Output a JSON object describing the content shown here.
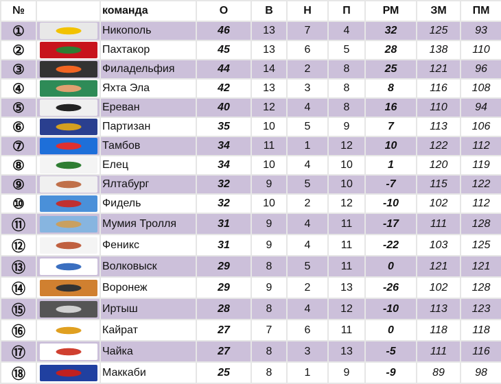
{
  "headers": {
    "pos": "№",
    "logo": "",
    "team": "команда",
    "pts": "О",
    "w": "В",
    "d": "Н",
    "l": "П",
    "gd": "РМ",
    "gf": "ЗМ",
    "ga": "ПМ"
  },
  "colors": {
    "alt_row": "#ccc0da",
    "grid": "#e6e6e6"
  },
  "rows": [
    {
      "pos": "①",
      "team": "Никополь",
      "pts": "46",
      "w": "13",
      "d": "7",
      "l": "4",
      "gd": "32",
      "gf": "125",
      "ga": "93",
      "logo_colors": [
        "#e8e8e8",
        "#f2c200"
      ]
    },
    {
      "pos": "②",
      "team": "Пахтакор",
      "pts": "45",
      "w": "13",
      "d": "6",
      "l": "5",
      "gd": "28",
      "gf": "138",
      "ga": "110",
      "logo_colors": [
        "#c8141c",
        "#2e7d32"
      ]
    },
    {
      "pos": "③",
      "team": "Филадельфия",
      "pts": "44",
      "w": "14",
      "d": "2",
      "l": "8",
      "gd": "25",
      "gf": "121",
      "ga": "96",
      "logo_colors": [
        "#333333",
        "#f26522"
      ]
    },
    {
      "pos": "④",
      "team": "Яхта Эла",
      "pts": "42",
      "w": "13",
      "d": "3",
      "l": "8",
      "gd": "8",
      "gf": "116",
      "ga": "108",
      "logo_colors": [
        "#2e8b57",
        "#e0a070"
      ]
    },
    {
      "pos": "⑤",
      "team": "Ереван",
      "pts": "40",
      "w": "12",
      "d": "4",
      "l": "8",
      "gd": "16",
      "gf": "110",
      "ga": "94",
      "logo_colors": [
        "#f0f0f0",
        "#222222"
      ]
    },
    {
      "pos": "⑥",
      "team": "Партизан",
      "pts": "35",
      "w": "10",
      "d": "5",
      "l": "9",
      "gd": "7",
      "gf": "113",
      "ga": "106",
      "logo_colors": [
        "#2a3f8f",
        "#d4a020"
      ]
    },
    {
      "pos": "⑦",
      "team": "Тамбов",
      "pts": "34",
      "w": "11",
      "d": "1",
      "l": "12",
      "gd": "10",
      "gf": "122",
      "ga": "112",
      "logo_colors": [
        "#1e6fd9",
        "#e03030"
      ]
    },
    {
      "pos": "⑧",
      "team": "Елец",
      "pts": "34",
      "w": "10",
      "d": "4",
      "l": "10",
      "gd": "1",
      "gf": "120",
      "ga": "119",
      "logo_colors": [
        "#f4f4f4",
        "#2e7d32"
      ]
    },
    {
      "pos": "⑨",
      "team": "Ялтабург",
      "pts": "32",
      "w": "9",
      "d": "5",
      "l": "10",
      "gd": "-7",
      "gf": "115",
      "ga": "122",
      "logo_colors": [
        "#f0f0f0",
        "#c0704a"
      ]
    },
    {
      "pos": "⑩",
      "team": "Фидель",
      "pts": "32",
      "w": "10",
      "d": "2",
      "l": "12",
      "gd": "-10",
      "gf": "102",
      "ga": "112",
      "logo_colors": [
        "#4a90d9",
        "#c03030"
      ]
    },
    {
      "pos": "⑪",
      "team": "Мумия Тролля",
      "pts": "31",
      "w": "9",
      "d": "4",
      "l": "11",
      "gd": "-17",
      "gf": "111",
      "ga": "128",
      "logo_colors": [
        "#87b5e0",
        "#c9a060"
      ]
    },
    {
      "pos": "⑫",
      "team": "Феникс",
      "pts": "31",
      "w": "9",
      "d": "4",
      "l": "11",
      "gd": "-22",
      "gf": "103",
      "ga": "125",
      "logo_colors": [
        "#f4f4f4",
        "#c06040"
      ]
    },
    {
      "pos": "⑬",
      "team": "Волковыск",
      "pts": "29",
      "w": "8",
      "d": "5",
      "l": "11",
      "gd": "0",
      "gf": "121",
      "ga": "121",
      "logo_colors": [
        "#ffffff",
        "#3a6fc0"
      ]
    },
    {
      "pos": "⑭",
      "team": "Воронеж",
      "pts": "29",
      "w": "9",
      "d": "2",
      "l": "13",
      "gd": "-26",
      "gf": "102",
      "ga": "128",
      "logo_colors": [
        "#d08030",
        "#333333"
      ]
    },
    {
      "pos": "⑮",
      "team": "Иртыш",
      "pts": "28",
      "w": "8",
      "d": "4",
      "l": "12",
      "gd": "-10",
      "gf": "113",
      "ga": "123",
      "logo_colors": [
        "#555555",
        "#d0d0d0"
      ]
    },
    {
      "pos": "⑯",
      "team": "Кайрат",
      "pts": "27",
      "w": "7",
      "d": "6",
      "l": "11",
      "gd": "0",
      "gf": "118",
      "ga": "118",
      "logo_colors": [
        "#ffffff",
        "#e0a020"
      ]
    },
    {
      "pos": "⑰",
      "team": "Чайка",
      "pts": "27",
      "w": "8",
      "d": "3",
      "l": "13",
      "gd": "-5",
      "gf": "111",
      "ga": "116",
      "logo_colors": [
        "#ffffff",
        "#d04030"
      ]
    },
    {
      "pos": "⑱",
      "team": "Маккаби",
      "pts": "25",
      "w": "8",
      "d": "1",
      "l": "9",
      "gd": "-9",
      "gf": "89",
      "ga": "98",
      "logo_colors": [
        "#2040a0",
        "#c02020"
      ]
    }
  ]
}
